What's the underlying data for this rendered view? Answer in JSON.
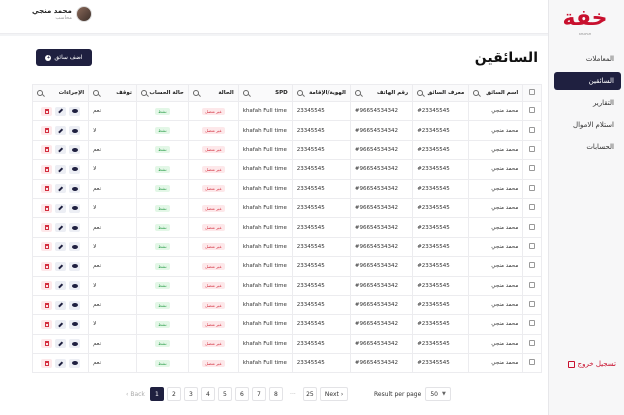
{
  "brand": {
    "logo_text": "خفة",
    "logo_sub": "KHAFAH"
  },
  "sidebar": {
    "items": [
      {
        "label": "المعاملات",
        "active": false
      },
      {
        "label": "السائقين",
        "active": true
      },
      {
        "label": "التقارير",
        "active": false
      },
      {
        "label": "استلام الاموال",
        "active": false
      },
      {
        "label": "الحسابات",
        "active": false
      }
    ],
    "logout_label": "تسجيل خروج"
  },
  "user": {
    "name": "محمد منجي",
    "role": "محاسب"
  },
  "page": {
    "title": "السائقين",
    "add_button": "اضف سائق"
  },
  "table": {
    "headers": {
      "name": "اسم السائق",
      "driver_id": "معرف السائق",
      "phone": "رقم الهاتف",
      "residence": "الهوية/الإقامة",
      "spd": "SPD",
      "status": "الحالة",
      "account_status": "حالة الحساب",
      "stopped": "توقف",
      "actions": "الإجراءات"
    },
    "rows": [
      {
        "name": "محمد منجي",
        "driver_id": "#23345545",
        "phone": "#96654534342",
        "residence": "23345545",
        "spd": "khafah Full time",
        "status": "غير متصل",
        "account": "نشط",
        "stopped": "نعم"
      },
      {
        "name": "محمد منجي",
        "driver_id": "#23345545",
        "phone": "#96654534342",
        "residence": "23345545",
        "spd": "khafah Full time",
        "status": "غير متصل",
        "account": "نشط",
        "stopped": "لا"
      },
      {
        "name": "محمد منجي",
        "driver_id": "#23345545",
        "phone": "#96654534342",
        "residence": "23345545",
        "spd": "khafah Full time",
        "status": "غير متصل",
        "account": "نشط",
        "stopped": "نعم"
      },
      {
        "name": "محمد منجي",
        "driver_id": "#23345545",
        "phone": "#96654534342",
        "residence": "23345545",
        "spd": "khafah Full time",
        "status": "غير متصل",
        "account": "نشط",
        "stopped": "لا"
      },
      {
        "name": "محمد منجي",
        "driver_id": "#23345545",
        "phone": "#96654534342",
        "residence": "23345545",
        "spd": "khafah Full time",
        "status": "غير متصل",
        "account": "نشط",
        "stopped": "نعم"
      },
      {
        "name": "محمد منجي",
        "driver_id": "#23345545",
        "phone": "#96654534342",
        "residence": "23345545",
        "spd": "khafah Full time",
        "status": "غير متصل",
        "account": "نشط",
        "stopped": "لا"
      },
      {
        "name": "محمد منجي",
        "driver_id": "#23345545",
        "phone": "#96654534342",
        "residence": "23345545",
        "spd": "khafah Full time",
        "status": "غير متصل",
        "account": "نشط",
        "stopped": "نعم"
      },
      {
        "name": "محمد منجي",
        "driver_id": "#23345545",
        "phone": "#96654534342",
        "residence": "23345545",
        "spd": "khafah Full time",
        "status": "غير متصل",
        "account": "نشط",
        "stopped": "لا"
      },
      {
        "name": "محمد منجي",
        "driver_id": "#23345545",
        "phone": "#96654534342",
        "residence": "23345545",
        "spd": "khafah Full time",
        "status": "غير متصل",
        "account": "نشط",
        "stopped": "نعم"
      },
      {
        "name": "محمد منجي",
        "driver_id": "#23345545",
        "phone": "#96654534342",
        "residence": "23345545",
        "spd": "khafah Full time",
        "status": "غير متصل",
        "account": "نشط",
        "stopped": "لا"
      },
      {
        "name": "محمد منجي",
        "driver_id": "#23345545",
        "phone": "#96654534342",
        "residence": "23345545",
        "spd": "khafah Full time",
        "status": "غير متصل",
        "account": "نشط",
        "stopped": "نعم"
      },
      {
        "name": "محمد منجي",
        "driver_id": "#23345545",
        "phone": "#96654534342",
        "residence": "23345545",
        "spd": "khafah Full time",
        "status": "غير متصل",
        "account": "نشط",
        "stopped": "لا"
      },
      {
        "name": "محمد منجي",
        "driver_id": "#23345545",
        "phone": "#96654534342",
        "residence": "23345545",
        "spd": "khafah Full time",
        "status": "غير متصل",
        "account": "نشط",
        "stopped": "نعم"
      },
      {
        "name": "محمد منجي",
        "driver_id": "#23345545",
        "phone": "#96654534342",
        "residence": "23345545",
        "spd": "khafah Full time",
        "status": "غير متصل",
        "account": "نشط",
        "stopped": "نعم"
      }
    ],
    "icons": {
      "search": "search-icon",
      "view": "eye-icon",
      "edit": "pen-icon",
      "delete": "trash-icon"
    }
  },
  "pagination": {
    "back_label": "Back",
    "pages": [
      "1",
      "2",
      "3",
      "4",
      "5",
      "6",
      "7",
      "8"
    ],
    "ellipsis": "···",
    "last_page": "25",
    "next_label": "Next",
    "current_page": "1",
    "rows_per_page_label": "Result per page",
    "rows_per_page_value": "50"
  },
  "colors": {
    "primary": "#1f2040",
    "brand_red": "#c8102e",
    "badge_red": "#d32f3f",
    "badge_green": "#2e9e4b"
  }
}
